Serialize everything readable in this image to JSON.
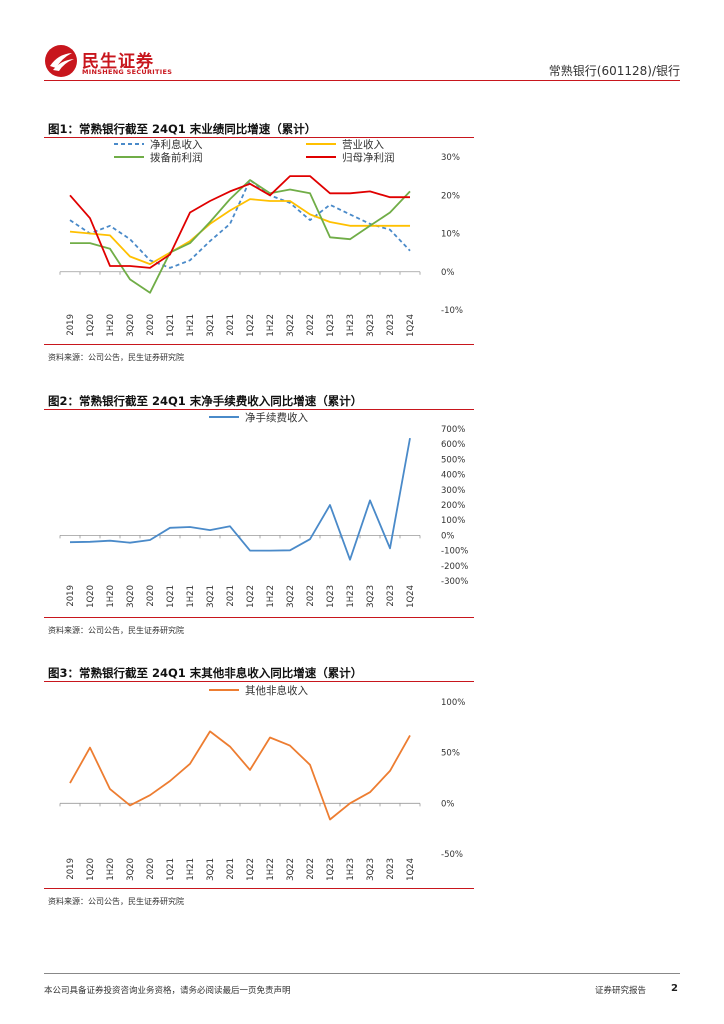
{
  "header": {
    "logo_cn": "民生证券",
    "logo_en": "MINSHENG SECURITIES",
    "right_text": "常熟银行(601128)/银行"
  },
  "colors": {
    "brand_red": "#c8161d",
    "blue": "#4a8ac9",
    "yellow": "#ffc000",
    "green": "#70ad47",
    "red": "#e00000",
    "orange": "#ed7d31"
  },
  "figures": [
    {
      "title": "图1：常熟银行截至 24Q1 末业绩同比增速（累计）",
      "source": "资料来源：公司公告，民生证券研究院"
    },
    {
      "title": "图2：常熟银行截至 24Q1 末净手续费收入同比增速（累计）",
      "source": "资料来源：公司公告，民生证券研究院"
    },
    {
      "title": "图3：常熟银行截至 24Q1 末其他非息收入同比增速（累计）",
      "source": "资料来源：公司公告，民生证券研究院"
    }
  ],
  "chart_data": [
    {
      "type": "line",
      "categories": [
        "2019",
        "1Q20",
        "1H20",
        "3Q20",
        "2020",
        "1Q21",
        "1H21",
        "3Q21",
        "2021",
        "1Q22",
        "1H22",
        "3Q22",
        "2022",
        "1Q23",
        "1H23",
        "3Q23",
        "2023",
        "1Q24"
      ],
      "ylim": [
        -10,
        30
      ],
      "yticks": [
        -10,
        0,
        10,
        20,
        30
      ],
      "yaxis_side": "right",
      "tick_format": "percent",
      "legend_placement": "top",
      "series": [
        {
          "name": "净利息收入",
          "color": "#4a8ac9",
          "dashed": true,
          "values": [
            13.5,
            10.0,
            12.0,
            8.5,
            3.0,
            1.0,
            3.0,
            8.0,
            12.5,
            24.0,
            20.0,
            18.0,
            13.5,
            17.5,
            15.0,
            12.5,
            11.0,
            5.5
          ]
        },
        {
          "name": "营业收入",
          "color": "#ffc000",
          "dashed": false,
          "values": [
            10.5,
            10.0,
            9.5,
            4.0,
            2.0,
            5.0,
            8.0,
            12.5,
            16.0,
            19.0,
            18.5,
            18.5,
            15.0,
            13.0,
            12.0,
            12.0,
            12.0,
            12.0
          ]
        },
        {
          "name": "拨备前利润",
          "color": "#70ad47",
          "dashed": false,
          "values": [
            7.5,
            7.5,
            6.0,
            -2.0,
            -5.5,
            5.0,
            7.5,
            13.0,
            19.0,
            24.0,
            20.5,
            21.5,
            20.5,
            9.0,
            8.5,
            12.0,
            15.5,
            21.0
          ]
        },
        {
          "name": "归母净利润",
          "color": "#e00000",
          "dashed": false,
          "values": [
            20.0,
            14.0,
            1.5,
            1.5,
            1.0,
            4.5,
            15.5,
            18.5,
            21.0,
            23.0,
            20.0,
            25.0,
            25.0,
            20.5,
            20.5,
            21.0,
            19.5,
            19.5
          ]
        }
      ]
    },
    {
      "type": "line",
      "categories": [
        "2019",
        "1Q20",
        "1H20",
        "3Q20",
        "2020",
        "1Q21",
        "1H21",
        "3Q21",
        "2021",
        "1Q22",
        "1H22",
        "3Q22",
        "2022",
        "1Q23",
        "1H23",
        "3Q23",
        "2023",
        "1Q24"
      ],
      "ylim": [
        -300,
        700
      ],
      "yticks": [
        -300,
        -200,
        -100,
        0,
        100,
        200,
        300,
        400,
        500,
        600,
        700
      ],
      "yaxis_side": "right",
      "tick_format": "percent",
      "legend_placement": "top",
      "series": [
        {
          "name": "净手续费收入",
          "color": "#4a8ac9",
          "dashed": false,
          "values": [
            -45,
            -42,
            -35,
            -48,
            -30,
            50,
            55,
            35,
            60,
            -100,
            -100,
            -98,
            -25,
            200,
            -160,
            230,
            -85,
            640
          ]
        }
      ]
    },
    {
      "type": "line",
      "categories": [
        "2019",
        "1Q20",
        "1H20",
        "3Q20",
        "2020",
        "1Q21",
        "1H21",
        "3Q21",
        "2021",
        "1Q22",
        "1H22",
        "3Q22",
        "2022",
        "1Q23",
        "1H23",
        "3Q23",
        "2023",
        "1Q24"
      ],
      "ylim": [
        -50,
        100
      ],
      "yticks": [
        -50,
        0,
        50,
        100
      ],
      "yaxis_side": "right",
      "tick_format": "percent",
      "legend_placement": "top",
      "series": [
        {
          "name": "其他非息收入",
          "color": "#ed7d31",
          "dashed": false,
          "values": [
            20,
            55,
            14,
            -2,
            8,
            22,
            39,
            71,
            56,
            33,
            65,
            57,
            38,
            -16,
            0,
            11,
            32,
            67
          ]
        }
      ]
    }
  ],
  "footer": {
    "disclaimer": "本公司具备证券投资咨询业务资格，请务必阅读最后一页免责声明",
    "report_type": "证券研究报告",
    "page_number": "2"
  }
}
